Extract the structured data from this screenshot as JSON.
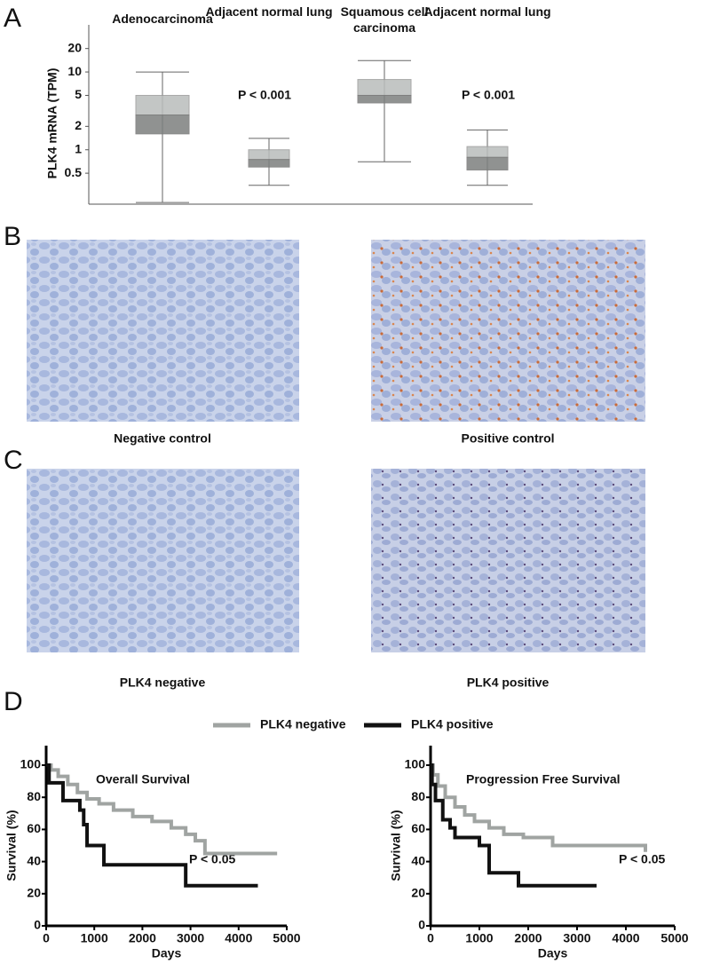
{
  "panel_labels": [
    "A",
    "B",
    "C",
    "D"
  ],
  "micrographs": [
    "Negative control",
    "Positive control",
    "PLK4 negative",
    "PLK4 positive"
  ],
  "chart_data": [
    {
      "type": "box",
      "y_label": "PLK4 mRNA (TPM)",
      "log_scale": true,
      "categories": [
        "Adenocarcinoma",
        "Adjacent normal lung",
        "Squamous cell carcinoma",
        "Adjacent normal lung"
      ],
      "boxes": [
        {
          "min": 0.21,
          "q1": 1.6,
          "median": 2.8,
          "q3": 5,
          "max": 10
        },
        {
          "min": 0.35,
          "q1": 0.6,
          "median": 0.75,
          "q3": 1,
          "max": 1.4
        },
        {
          "min": 0.7,
          "q1": 4,
          "median": 5,
          "q3": 8,
          "max": 14
        },
        {
          "min": 0.35,
          "q1": 0.55,
          "median": 0.8,
          "q3": 1.1,
          "max": 1.8
        }
      ],
      "annotations": [
        "P < 0.001",
        "P < 0.001"
      ],
      "ylim": [
        0.2,
        31
      ],
      "yticks": [
        0.5,
        1,
        2,
        5,
        10,
        20
      ]
    },
    {
      "type": "line",
      "step": true,
      "legend": true,
      "title": "Overall Survival",
      "x_label": "Days",
      "y_label": "Survival (%)",
      "annotation": "P < 0.05",
      "series": [
        {
          "name": "PLK4 negative",
          "color": "#a0a4a2",
          "x": [
            0,
            100,
            250,
            450,
            650,
            850,
            1100,
            1400,
            1800,
            2200,
            2600,
            2900,
            3100,
            3300,
            4800
          ],
          "values": [
            100,
            97,
            93,
            88,
            83,
            79,
            76,
            72,
            68,
            65,
            61,
            57,
            53,
            45,
            45
          ]
        },
        {
          "name": "PLK4 positive",
          "color": "#111111",
          "x": [
            0,
            60,
            350,
            700,
            780,
            850,
            1200,
            2900,
            4400
          ],
          "values": [
            100,
            89,
            78,
            72,
            63,
            50,
            38,
            25,
            25
          ]
        }
      ],
      "xlim": [
        0,
        5000
      ],
      "xticks": [
        0,
        1000,
        2000,
        3000,
        4000,
        5000
      ],
      "ylim": [
        0,
        100
      ],
      "yticks": [
        0,
        20,
        40,
        60,
        80,
        100
      ]
    },
    {
      "type": "line",
      "step": true,
      "legend": false,
      "title": "Progression Free Survival",
      "x_label": "Days",
      "y_label": "Survival (%)",
      "annotation": "P < 0.05",
      "series": [
        {
          "color": "#a0a4a2",
          "x": [
            0,
            50,
            150,
            300,
            500,
            700,
            900,
            1200,
            1500,
            1900,
            2500,
            4400
          ],
          "values": [
            100,
            94,
            87,
            80,
            74,
            69,
            65,
            61,
            57,
            55,
            50,
            46
          ]
        },
        {
          "color": "#111111",
          "x": [
            0,
            30,
            100,
            250,
            400,
            500,
            1000,
            1200,
            1800,
            3400
          ],
          "values": [
            100,
            88,
            78,
            66,
            61,
            55,
            50,
            33,
            25,
            25
          ]
        }
      ],
      "xlim": [
        0,
        5000
      ],
      "xticks": [
        0,
        1000,
        2000,
        3000,
        4000,
        5000
      ],
      "ylim": [
        0,
        100
      ],
      "yticks": [
        0,
        20,
        40,
        60,
        80,
        100
      ]
    }
  ]
}
